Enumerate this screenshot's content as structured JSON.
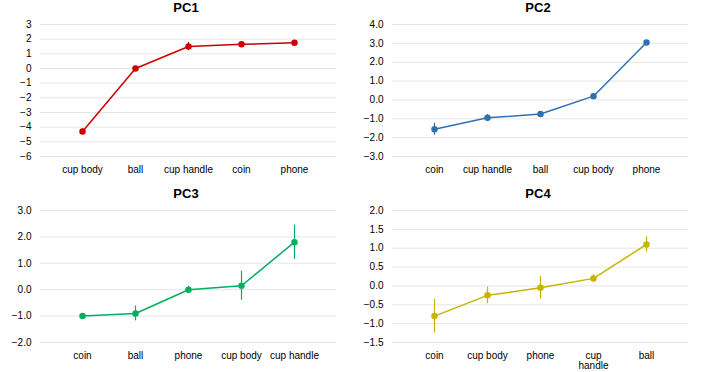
{
  "chart_data": [
    {
      "type": "line",
      "title": "PC1",
      "categories": [
        "cup body",
        "ball",
        "cup handle",
        "coin",
        "phone"
      ],
      "values": [
        -4.3,
        0.0,
        1.5,
        1.65,
        1.75
      ],
      "errors": [
        0.18,
        0.12,
        0.28,
        0.12,
        0.08
      ],
      "color": "#cc0000",
      "marker": "circle",
      "ylim": [
        -6,
        3
      ],
      "yticks": [
        -6,
        -5,
        -4,
        -3,
        -2,
        -1,
        0,
        1,
        2,
        3
      ],
      "grid": true
    },
    {
      "type": "line",
      "title": "PC2",
      "categories": [
        "coin",
        "cup handle",
        "ball",
        "cup body",
        "phone"
      ],
      "values": [
        -1.55,
        -0.95,
        -0.75,
        0.2,
        3.05
      ],
      "errors": [
        0.32,
        0.18,
        0.12,
        0.12,
        0.08
      ],
      "color": "#3070b0",
      "marker": "circle",
      "ylim": [
        -3,
        4
      ],
      "yticks": [
        -3,
        -2,
        -1,
        0,
        1,
        2,
        3,
        4
      ],
      "grid": true
    },
    {
      "type": "line",
      "title": "PC3",
      "categories": [
        "coin",
        "ball",
        "phone",
        "cup body",
        "cup handle"
      ],
      "values": [
        -1.0,
        -0.9,
        0.0,
        0.15,
        1.8
      ],
      "errors": [
        0.08,
        0.28,
        0.12,
        0.55,
        0.65
      ],
      "color": "#00b060",
      "marker": "circle",
      "ylim": [
        -2,
        3
      ],
      "yticks": [
        -2,
        -1,
        0,
        1,
        2,
        3
      ],
      "grid": true
    },
    {
      "type": "line",
      "title": "PC4",
      "categories": [
        "coin",
        "cup body",
        "phone",
        "cup\nhandle",
        "ball"
      ],
      "values": [
        -0.8,
        -0.25,
        -0.05,
        0.2,
        1.1
      ],
      "errors": [
        0.45,
        0.22,
        0.3,
        0.1,
        0.2
      ],
      "color": "#c8b400",
      "marker": "circle",
      "ylim": [
        -1.5,
        2
      ],
      "yticks": [
        -1.5,
        -1,
        -0.5,
        0,
        0.5,
        1,
        1.5,
        2
      ],
      "grid": true
    }
  ]
}
